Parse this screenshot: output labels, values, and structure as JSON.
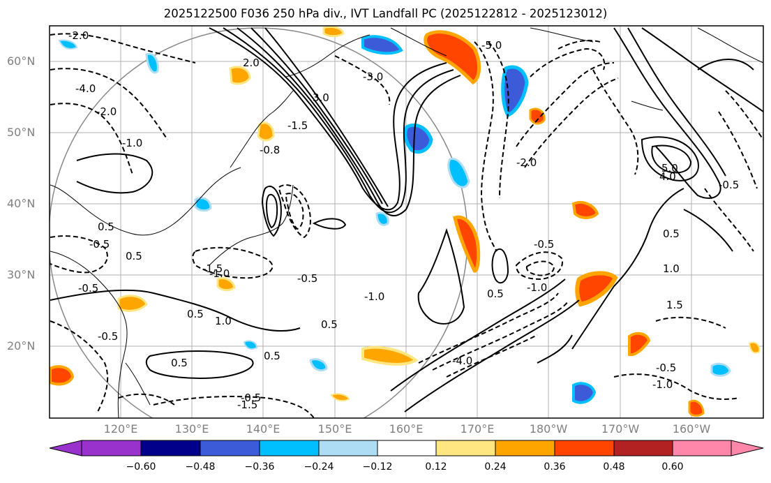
{
  "title": "2025122500 F036 250 hPa div., IVT Landfall PC (2025122812 - 2025123012)",
  "lat_labels": [
    "60°N",
    "50°N",
    "40°N",
    "30°N",
    "20°N"
  ],
  "lon_labels": [
    "120°E",
    "130°E",
    "140°E",
    "150°E",
    "160°E",
    "170°E",
    "180°W",
    "170°W",
    "160°W"
  ],
  "colorbar": {
    "ticks": [
      "−0.60",
      "−0.48",
      "−0.36",
      "−0.24",
      "−0.12",
      "0.12",
      "0.24",
      "0.36",
      "0.48",
      "0.60"
    ],
    "colors": [
      "#9932CC",
      "#00008B",
      "#3B5BD9",
      "#00BFFF",
      "#ADDDF5",
      "#FFFFFF",
      "#FFE680",
      "#FFA500",
      "#FF4500",
      "#B22222",
      "#FF88AA"
    ]
  },
  "contour_labels": [
    "-2.0",
    "-4.0",
    "-2.0",
    "-1.0",
    "0.5",
    "-0.5",
    "-0.5",
    "0.5",
    "-1.5",
    "-1.0",
    "-0.5",
    "0.5",
    "1.0",
    "0.5",
    "-0.5",
    "-0.5",
    "0.5",
    "-1.5",
    "0.5",
    "-1.0",
    "-4.0",
    "2.0",
    "-2.0",
    "-5.0",
    "-3.0",
    "-1.5",
    "-0.8",
    "3.0",
    "5.0",
    "4.0",
    "-0.5",
    "0.5",
    "1.0",
    "1.5",
    "-0.5",
    "-1.0",
    "0.5",
    "-0.5",
    "-1.0"
  ]
}
